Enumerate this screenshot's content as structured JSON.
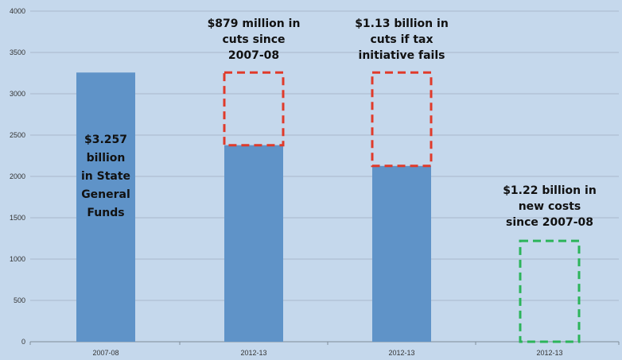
{
  "chart_data": {
    "type": "bar",
    "categories": [
      "2007-08",
      "2012-13",
      "2012-13",
      "2012-13"
    ],
    "values": [
      3257,
      2378,
      2127,
      0
    ],
    "ylim": [
      0,
      4000
    ],
    "yticks": [
      "0",
      "500",
      "1000",
      "1500",
      "2000",
      "2500",
      "3000",
      "3500",
      "4000"
    ],
    "grid": true,
    "bar_color": "#5f93c8",
    "dashed_boxes": [
      {
        "category_index": 1,
        "y_bottom": 2378,
        "y_top": 3257,
        "color": "#e03a2a"
      },
      {
        "category_index": 2,
        "y_bottom": 2127,
        "y_top": 3257,
        "color": "#e03a2a"
      },
      {
        "category_index": 3,
        "y_bottom": 0,
        "y_top": 1220,
        "color": "#2cb45a"
      }
    ],
    "annotations": [
      {
        "category_index": 0,
        "lines": [
          "$3.257",
          "billion",
          "in State",
          "General",
          "Funds"
        ]
      },
      {
        "category_index": 1,
        "lines": [
          "$879 million in",
          "cuts since",
          "2007-08"
        ]
      },
      {
        "category_index": 2,
        "lines": [
          "$1.13 billion in",
          "cuts if tax",
          "initiative fails"
        ]
      },
      {
        "category_index": 3,
        "lines": [
          "$1.22 billion in",
          "new costs",
          "since 2007-08"
        ]
      }
    ]
  }
}
